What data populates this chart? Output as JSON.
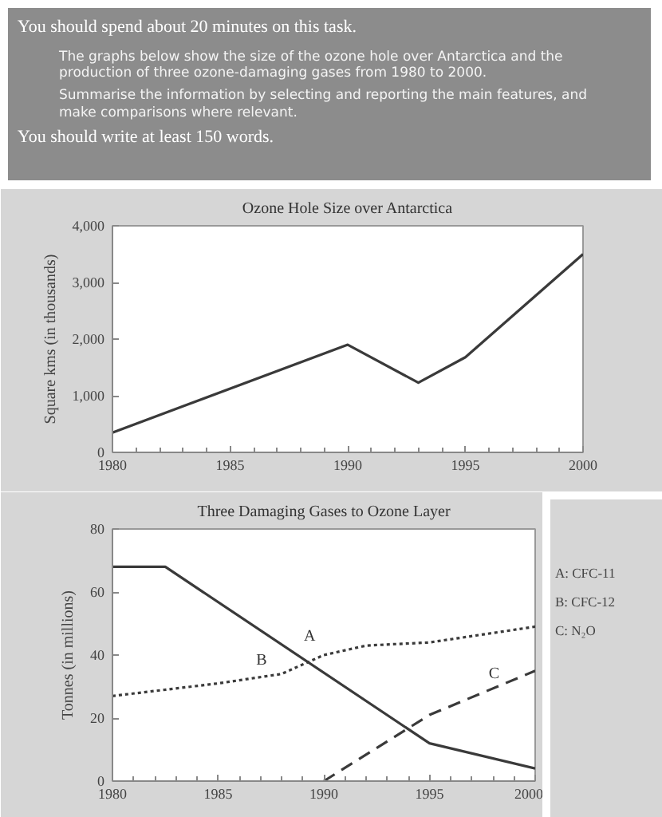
{
  "chart_data": [
    {
      "type": "line",
      "title": "Ozone Hole Size over Antarctica",
      "ylabel": "Square kms (in thousands)",
      "annotations": [
        "You should spend about 20 minutes on this task.",
        "The graphs below show the size of the ozone hole over Antarctica and the production of three ozone-damaging gases from 1980 to 2000.",
        "Summarise the information by selecting and reporting the main features, and make comparisons where relevant.",
        "You should write at least 150 words."
      ],
      "x": [
        1980,
        1990,
        1993,
        1995,
        2000
      ],
      "series": [
        {
          "color": "#3a3a3a",
          "values": [
            350,
            1900,
            1230,
            1680,
            3500
          ]
        }
      ],
      "xlim": [
        1980,
        2000
      ],
      "ylim": [
        0,
        4000
      ],
      "xticks": [
        1980,
        {
          "value": 1981,
          "label": null
        },
        {
          "value": 1982,
          "label": null
        },
        {
          "value": 1983,
          "label": null
        },
        {
          "value": 1984,
          "label": null
        },
        1985,
        {
          "value": 1986,
          "label": null
        },
        {
          "value": 1987,
          "label": null
        },
        {
          "value": 1988,
          "label": null
        },
        {
          "value": 1989,
          "label": null
        },
        1990,
        {
          "value": 1991,
          "label": null
        },
        {
          "value": 1992,
          "label": null
        },
        {
          "value": 1993,
          "label": null
        },
        {
          "value": 1994,
          "label": null
        },
        1995,
        {
          "value": 1996,
          "label": null
        },
        {
          "value": 1997,
          "label": null
        },
        {
          "value": 1998,
          "label": null
        },
        {
          "value": 1999,
          "label": null
        },
        2000
      ],
      "yticks": [
        0,
        {
          "value": 1000,
          "label": "1,000"
        },
        {
          "value": 2000,
          "label": "2,000"
        },
        {
          "value": 3000,
          "label": "3,000"
        },
        {
          "value": 4000,
          "label": "4,000"
        }
      ],
      "grid": false,
      "marker": "none",
      "line_style": "solid"
    },
    {
      "type": "line",
      "title": "Three Damaging Gases to Ozone Layer",
      "ylabel": "Tonnes (in millions)",
      "annotations": [
        "A: CFC-11",
        "B: CFC-12",
        "C: N₂O"
      ],
      "series": [
        {
          "name": "A",
          "color": "#3a3a3a",
          "line_style": "solid",
          "x": [
            1980,
            1982.5,
            1995,
            2000
          ],
          "values": [
            68,
            68,
            12,
            4
          ]
        },
        {
          "name": "B",
          "color": "#3a3a3a",
          "line_style": "dotted",
          "x": [
            1980,
            1985,
            1988,
            1990,
            1992,
            1995,
            2000
          ],
          "values": [
            27,
            31,
            34,
            40,
            43,
            44,
            49
          ]
        },
        {
          "name": "C",
          "color": "#3a3a3a",
          "line_style": "dashed",
          "x": [
            1990,
            1995,
            2000
          ],
          "values": [
            0,
            21,
            35
          ]
        }
      ],
      "xlim": [
        1980,
        2000
      ],
      "ylim": [
        0,
        80
      ],
      "xticks": [
        1980,
        {
          "value": 1981,
          "label": null
        },
        {
          "value": 1982,
          "label": null
        },
        {
          "value": 1983,
          "label": null
        },
        {
          "value": 1984,
          "label": null
        },
        1985,
        {
          "value": 1986,
          "label": null
        },
        {
          "value": 1987,
          "label": null
        },
        {
          "value": 1988,
          "label": null
        },
        {
          "value": 1989,
          "label": null
        },
        1990,
        {
          "value": 1991,
          "label": null
        },
        {
          "value": 1992,
          "label": null
        },
        {
          "value": 1993,
          "label": null
        },
        {
          "value": 1994,
          "label": null
        },
        1995,
        {
          "value": 1996,
          "label": null
        },
        {
          "value": 1997,
          "label": null
        },
        {
          "value": 1998,
          "label": null
        },
        {
          "value": 1999,
          "label": null
        },
        2000
      ],
      "yticks": [
        0,
        20,
        40,
        60,
        80
      ],
      "grid": false,
      "marker": "none"
    }
  ]
}
